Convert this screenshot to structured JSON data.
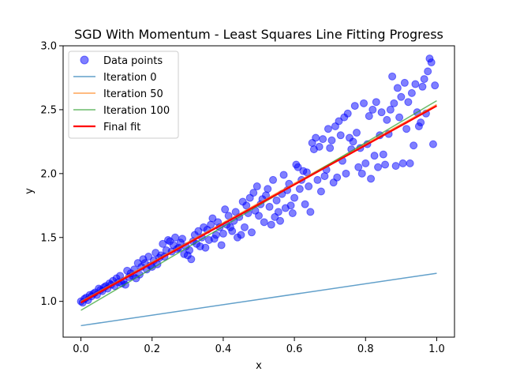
{
  "chart_data": {
    "type": "scatter",
    "title": "SGD With Momentum - Least Squares Line Fitting Progress",
    "xlabel": "x",
    "ylabel": "y",
    "xlim": [
      -0.05,
      1.05
    ],
    "ylim": [
      0.72,
      3.0
    ],
    "xticks": [
      0.0,
      0.2,
      0.4,
      0.6,
      0.8,
      1.0
    ],
    "xtick_labels": [
      "0.0",
      "0.2",
      "0.4",
      "0.6",
      "0.8",
      "1.0"
    ],
    "yticks": [
      1.0,
      1.5,
      2.0,
      2.5,
      3.0
    ],
    "ytick_labels": [
      "1.0",
      "1.5",
      "2.0",
      "2.5",
      "3.0"
    ],
    "grid": false,
    "legend_position": "top-left",
    "scatter": {
      "name": "Data points",
      "color": "#0000ff",
      "alpha": 0.5,
      "x": [
        0.0,
        0.005,
        0.01,
        0.015,
        0.02,
        0.025,
        0.03,
        0.035,
        0.04,
        0.045,
        0.05,
        0.055,
        0.06,
        0.065,
        0.07,
        0.075,
        0.08,
        0.085,
        0.09,
        0.095,
        0.1,
        0.105,
        0.11,
        0.115,
        0.12,
        0.125,
        0.13,
        0.135,
        0.14,
        0.145,
        0.15,
        0.155,
        0.16,
        0.165,
        0.17,
        0.175,
        0.18,
        0.185,
        0.19,
        0.195,
        0.2,
        0.205,
        0.21,
        0.215,
        0.22,
        0.225,
        0.23,
        0.235,
        0.24,
        0.245,
        0.25,
        0.255,
        0.26,
        0.265,
        0.27,
        0.275,
        0.28,
        0.285,
        0.29,
        0.295,
        0.3,
        0.305,
        0.31,
        0.315,
        0.32,
        0.325,
        0.33,
        0.335,
        0.34,
        0.345,
        0.35,
        0.355,
        0.36,
        0.365,
        0.37,
        0.375,
        0.38,
        0.385,
        0.39,
        0.395,
        0.4,
        0.405,
        0.41,
        0.415,
        0.42,
        0.425,
        0.43,
        0.435,
        0.44,
        0.445,
        0.45,
        0.455,
        0.46,
        0.465,
        0.47,
        0.475,
        0.48,
        0.485,
        0.49,
        0.495,
        0.5,
        0.505,
        0.51,
        0.515,
        0.52,
        0.525,
        0.53,
        0.535,
        0.54,
        0.545,
        0.55,
        0.555,
        0.56,
        0.565,
        0.57,
        0.575,
        0.58,
        0.585,
        0.59,
        0.595,
        0.6,
        0.605,
        0.61,
        0.615,
        0.62,
        0.625,
        0.63,
        0.635,
        0.64,
        0.645,
        0.65,
        0.655,
        0.66,
        0.665,
        0.67,
        0.675,
        0.68,
        0.685,
        0.69,
        0.695,
        0.7,
        0.705,
        0.71,
        0.715,
        0.72,
        0.725,
        0.73,
        0.735,
        0.74,
        0.745,
        0.75,
        0.755,
        0.76,
        0.765,
        0.77,
        0.775,
        0.78,
        0.785,
        0.79,
        0.795,
        0.8,
        0.805,
        0.81,
        0.815,
        0.82,
        0.825,
        0.83,
        0.835,
        0.84,
        0.845,
        0.85,
        0.855,
        0.86,
        0.865,
        0.87,
        0.875,
        0.88,
        0.885,
        0.89,
        0.895,
        0.9,
        0.905,
        0.91,
        0.915,
        0.92,
        0.925,
        0.93,
        0.935,
        0.94,
        0.945,
        0.95,
        0.955,
        0.96,
        0.965,
        0.97,
        0.975,
        0.98,
        0.985,
        0.99,
        0.995
      ],
      "y": [
        1.0,
        0.99,
        1.02,
        1.03,
        1.01,
        1.05,
        1.04,
        1.06,
        1.07,
        1.05,
        1.1,
        1.09,
        1.08,
        1.11,
        1.12,
        1.1,
        1.14,
        1.13,
        1.16,
        1.12,
        1.18,
        1.15,
        1.2,
        1.14,
        1.16,
        1.13,
        1.24,
        1.19,
        1.22,
        1.2,
        1.25,
        1.18,
        1.3,
        1.21,
        1.27,
        1.33,
        1.3,
        1.25,
        1.35,
        1.28,
        1.27,
        1.32,
        1.38,
        1.29,
        1.34,
        1.36,
        1.45,
        1.35,
        1.4,
        1.48,
        1.47,
        1.39,
        1.44,
        1.5,
        1.41,
        1.42,
        1.46,
        1.49,
        1.37,
        1.43,
        1.36,
        1.4,
        1.33,
        1.47,
        1.52,
        1.45,
        1.55,
        1.43,
        1.5,
        1.58,
        1.42,
        1.56,
        1.48,
        1.6,
        1.65,
        1.49,
        1.52,
        1.62,
        1.58,
        1.44,
        1.53,
        1.72,
        1.6,
        1.67,
        1.58,
        1.55,
        1.63,
        1.7,
        1.5,
        1.66,
        1.52,
        1.78,
        1.58,
        1.75,
        1.69,
        1.81,
        1.54,
        1.85,
        1.71,
        1.9,
        1.67,
        1.76,
        1.8,
        1.62,
        1.83,
        1.88,
        1.74,
        1.6,
        1.95,
        1.66,
        1.79,
        1.7,
        1.63,
        1.84,
        1.99,
        1.73,
        1.87,
        1.92,
        1.75,
        1.69,
        1.81,
        2.07,
        2.05,
        1.88,
        1.95,
        2.02,
        1.76,
        2.01,
        1.9,
        1.7,
        2.24,
        2.19,
        2.28,
        1.95,
        2.21,
        1.86,
        2.27,
        1.98,
        2.03,
        2.35,
        2.2,
        2.26,
        1.93,
        2.37,
        1.97,
        2.41,
        2.3,
        2.1,
        2.44,
        2.0,
        2.47,
        2.28,
        2.19,
        2.25,
        2.53,
        2.32,
        2.05,
        2.2,
        2.0,
        2.55,
        2.08,
        2.23,
        2.45,
        1.96,
        2.5,
        2.14,
        2.56,
        2.05,
        2.3,
        2.48,
        2.15,
        2.07,
        2.42,
        2.31,
        2.5,
        2.76,
        2.55,
        2.06,
        2.67,
        2.44,
        2.6,
        2.08,
        2.71,
        2.35,
        2.56,
        2.08,
        2.63,
        2.22,
        2.7,
        2.48,
        2.37,
        2.4,
        2.68,
        2.74,
        2.47,
        2.8,
        2.9,
        2.87,
        2.23,
        2.69
      ],
      "points_note_omitted": null
    },
    "series": [
      {
        "name": "Iteration 0",
        "color": "#1f77b4",
        "alpha": 0.7,
        "width": 1.5,
        "x": [
          0.0,
          1.0
        ],
        "y": [
          0.81,
          1.22
        ]
      },
      {
        "name": "Iteration 50",
        "color": "#ff7f0e",
        "alpha": 0.7,
        "width": 1.5,
        "x": [
          0.0,
          1.0
        ],
        "y": [
          1.0,
          2.54
        ]
      },
      {
        "name": "Iteration 100",
        "color": "#2ca02c",
        "alpha": 0.7,
        "width": 1.5,
        "x": [
          0.0,
          1.0
        ],
        "y": [
          0.93,
          2.57
        ]
      },
      {
        "name": "Final fit",
        "color": "#ff0000",
        "alpha": 1.0,
        "width": 2.2,
        "x": [
          0.0,
          1.0
        ],
        "y": [
          0.99,
          2.53
        ]
      }
    ]
  }
}
